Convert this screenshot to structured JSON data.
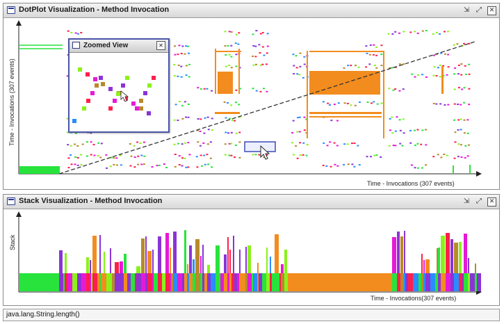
{
  "dotplot_panel": {
    "title": "DotPlot Visualization - Method Invocation",
    "y_axis_label": "Time - Invocations (307 events)",
    "x_axis_label": "Time - Invocations (307 events)"
  },
  "zoom_window": {
    "title": "Zoomed View"
  },
  "stack_panel": {
    "title": "Stack Visualization - Method Invocation",
    "y_axis_label": "Stack",
    "x_axis_label": "Time - Invocations(307 events)"
  },
  "status_bar": {
    "text": "java.lang.String.length()"
  },
  "icons": [
    "window-icon",
    "minimize-icon",
    "maximize-icon",
    "close-icon",
    "mouse-cursor-icon"
  ],
  "colors": {
    "orange": "#f28c1e",
    "green": "#27e33c",
    "lime": "#8af21a",
    "red": "#ff1f4b",
    "blue": "#2a8cff",
    "magenta": "#e51ad8",
    "purple": "#8a34d6",
    "olive": "#b78a2a",
    "window_border": "#4a55a8"
  }
}
